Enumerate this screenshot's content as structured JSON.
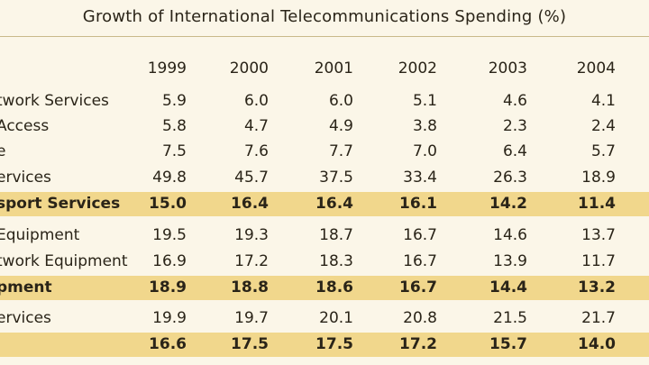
{
  "chart_data": {
    "type": "table",
    "title": "Growth of International Telecommunications Spending (%)",
    "columns": [
      "1999",
      "2000",
      "2001",
      "2002",
      "2003",
      "2004"
    ],
    "rows": [
      {
        "label": "twork Services",
        "values": [
          "5.9",
          "6.0",
          "6.0",
          "5.1",
          "4.6",
          "4.1"
        ],
        "highlight": false
      },
      {
        "label": "Access",
        "values": [
          "5.8",
          "4.7",
          "4.9",
          "3.8",
          "2.3",
          "2.4"
        ],
        "highlight": false
      },
      {
        "label": "e",
        "values": [
          "7.5",
          "7.6",
          "7.7",
          "7.0",
          "6.4",
          "5.7"
        ],
        "highlight": false
      },
      {
        "label": "ervices",
        "values": [
          "49.8",
          "45.7",
          "37.5",
          "33.4",
          "26.3",
          "18.9"
        ],
        "highlight": false
      },
      {
        "label": "sport Services",
        "values": [
          "15.0",
          "16.4",
          "16.4",
          "16.1",
          "14.2",
          "11.4"
        ],
        "highlight": true
      },
      {
        "label": "Equipment",
        "values": [
          "19.5",
          "19.3",
          "18.7",
          "16.7",
          "14.6",
          "13.7"
        ],
        "highlight": false
      },
      {
        "label": "twork Equipment",
        "values": [
          "16.9",
          "17.2",
          "18.3",
          "16.7",
          "13.9",
          "11.7"
        ],
        "highlight": false
      },
      {
        "label": "pment",
        "values": [
          "18.9",
          "18.8",
          "18.6",
          "16.7",
          "14.4",
          "13.2"
        ],
        "highlight": true
      },
      {
        "label": "ervices",
        "values": [
          "19.9",
          "19.7",
          "20.1",
          "20.8",
          "21.5",
          "21.7"
        ],
        "highlight": false
      },
      {
        "label": "",
        "values": [
          "16.6",
          "17.5",
          "17.5",
          "17.2",
          "15.7",
          "14.0"
        ],
        "highlight": true
      }
    ]
  }
}
